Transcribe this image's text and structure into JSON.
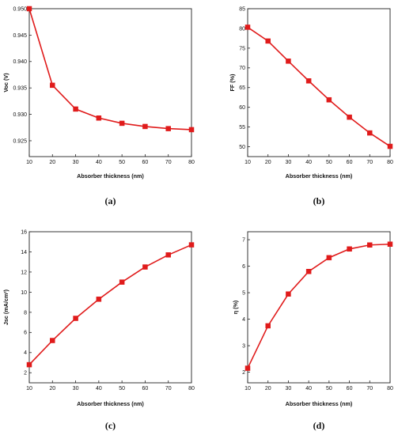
{
  "colors": {
    "series": "#e01b1b",
    "axis": "#222222"
  },
  "chart_data": [
    {
      "panel": "(a)",
      "type": "line",
      "marker": "square",
      "xlabel": "Absorber thickness (nm)",
      "ylabel": "Voc (V)",
      "xlim": [
        10,
        80
      ],
      "ylim": [
        0.922,
        0.95
      ],
      "xticks": [
        10,
        20,
        30,
        40,
        50,
        60,
        70,
        80
      ],
      "yticks": [
        0.925,
        0.93,
        0.935,
        0.94,
        0.945,
        0.95
      ],
      "ytick_labels": [
        "0.925",
        "0.930",
        "0.935",
        "0.940",
        "0.945",
        "0.950"
      ],
      "x": [
        10,
        20,
        30,
        40,
        50,
        60,
        70,
        80
      ],
      "series": [
        {
          "values": [
            0.95,
            0.9355,
            0.931,
            0.9293,
            0.9283,
            0.9277,
            0.9273,
            0.9271
          ]
        }
      ],
      "grid": false
    },
    {
      "panel": "(b)",
      "type": "line",
      "marker": "square",
      "xlabel": "Absorber thickness (nm)",
      "ylabel": "FF (%)",
      "xlim": [
        10,
        80
      ],
      "ylim": [
        47.5,
        85
      ],
      "xticks": [
        10,
        20,
        30,
        40,
        50,
        60,
        70,
        80
      ],
      "yticks": [
        50,
        55,
        60,
        65,
        70,
        75,
        80,
        85
      ],
      "ytick_labels": [
        "50",
        "55",
        "60",
        "65",
        "70",
        "75",
        "80",
        "85"
      ],
      "x": [
        10,
        20,
        30,
        40,
        50,
        60,
        70,
        80
      ],
      "series": [
        {
          "values": [
            80.3,
            76.8,
            71.7,
            66.7,
            61.9,
            57.5,
            53.5,
            50.1
          ]
        }
      ],
      "grid": false
    },
    {
      "panel": "(c)",
      "type": "line",
      "marker": "square",
      "xlabel": "Absorber thickness (nm)",
      "ylabel": "Jsc (mA/cm²)",
      "xlim": [
        10,
        80
      ],
      "ylim": [
        1,
        16
      ],
      "xticks": [
        10,
        20,
        30,
        40,
        50,
        60,
        70,
        80
      ],
      "yticks": [
        2,
        4,
        6,
        8,
        10,
        12,
        14,
        16
      ],
      "ytick_labels": [
        "2",
        "4",
        "6",
        "8",
        "10",
        "12",
        "14",
        "16"
      ],
      "x": [
        10,
        20,
        30,
        40,
        50,
        60,
        70,
        80
      ],
      "series": [
        {
          "values": [
            2.8,
            5.2,
            7.4,
            9.3,
            11.0,
            12.5,
            13.7,
            14.7
          ]
        }
      ],
      "grid": false
    },
    {
      "panel": "(d)",
      "type": "line",
      "marker": "square",
      "xlabel": "Absorber thickness (nm)",
      "ylabel": "η (%)",
      "xlim": [
        10,
        80
      ],
      "ylim": [
        1.6,
        7.3
      ],
      "xticks": [
        10,
        20,
        30,
        40,
        50,
        60,
        70,
        80
      ],
      "yticks": [
        2,
        3,
        4,
        5,
        6,
        7
      ],
      "ytick_labels": [
        "2",
        "3",
        "4",
        "5",
        "6",
        "7"
      ],
      "x": [
        10,
        20,
        30,
        40,
        50,
        60,
        70,
        80
      ],
      "series": [
        {
          "values": [
            2.15,
            3.75,
            4.95,
            5.8,
            6.32,
            6.65,
            6.8,
            6.83
          ]
        }
      ],
      "grid": false
    }
  ]
}
